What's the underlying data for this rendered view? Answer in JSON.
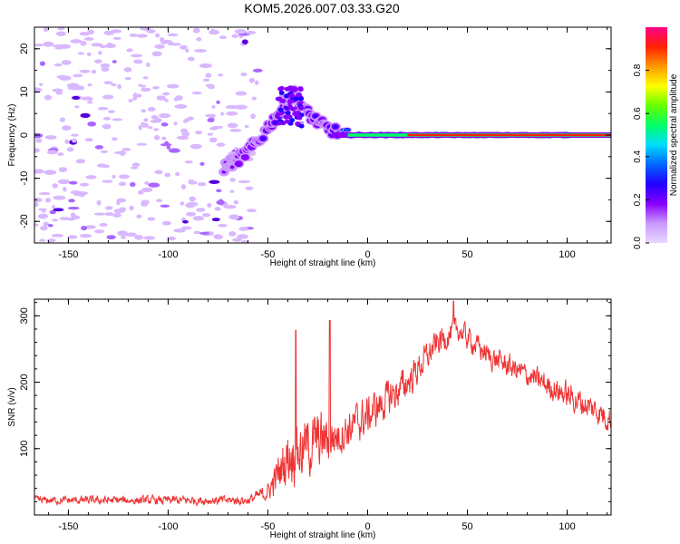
{
  "chart_data": [
    {
      "type": "heatmap",
      "title": "KOM5.2026.007.03.33.G20",
      "xlabel": "Height of straight line (km)",
      "ylabel": "Frequency (Hz)",
      "xlim": [
        -167,
        122
      ],
      "ylim": [
        -25,
        25
      ],
      "xticks": [
        -150,
        -100,
        -50,
        0,
        50,
        100
      ],
      "yticks": [
        -20,
        -10,
        0,
        10,
        20
      ],
      "colorbar": {
        "label": "Normalized spectral amplitude",
        "range": [
          0,
          1
        ],
        "ticks": [
          "0.0",
          "0.2",
          "0.4",
          "0.6",
          "0.8"
        ],
        "colors": [
          "#e6d9ff",
          "#cc99ff",
          "#8800ff",
          "#2200ff",
          "#0066ff",
          "#00ddff",
          "#00ff66",
          "#66ff00",
          "#ffff00",
          "#ff9900",
          "#ff2200",
          "#ff0088"
        ]
      },
      "features": [
        {
          "x": -72,
          "y": -7.5,
          "amp": 0.18
        },
        {
          "x": -63,
          "y": -5,
          "amp": 0.2
        },
        {
          "x": -55,
          "y": -1.5,
          "amp": 0.22
        },
        {
          "x": -48,
          "y": 3,
          "amp": 0.25
        },
        {
          "x": -42,
          "y": 6.5,
          "amp": 0.25
        },
        {
          "x": -37,
          "y": 9.5,
          "amp": 0.2
        },
        {
          "x": -30,
          "y": 5,
          "amp": 0.28
        },
        {
          "x": -22,
          "y": 2,
          "amp": 0.2
        },
        {
          "x": -12,
          "y": 0,
          "amp": 0.4
        },
        {
          "x": 0,
          "y": 0,
          "amp": 0.45
        },
        {
          "x": 20,
          "y": 0,
          "amp": 0.6
        },
        {
          "x": 60,
          "y": 0,
          "amp": 0.95
        },
        {
          "x": 100,
          "y": 0,
          "amp": 0.8
        }
      ],
      "noise": {
        "x_range": [
          -167,
          -55
        ],
        "y_range": [
          -25,
          25
        ],
        "amp": 0.05
      }
    },
    {
      "type": "line",
      "xlabel": "Height of straight line (km)",
      "ylabel": "SNR (v/v)",
      "xlim": [
        -167,
        122
      ],
      "ylim": [
        0,
        325
      ],
      "xticks": [
        -150,
        -100,
        -50,
        0,
        50,
        100
      ],
      "yticks": [
        100,
        200,
        300
      ],
      "color": "#ee3333",
      "envelope": [
        {
          "x": -167,
          "base": 22,
          "spread": 12
        },
        {
          "x": -60,
          "base": 22,
          "spread": 14
        },
        {
          "x": -50,
          "base": 35,
          "spread": 25
        },
        {
          "x": -40,
          "base": 90,
          "spread": 90
        },
        {
          "x": -25,
          "base": 110,
          "spread": 90
        },
        {
          "x": -15,
          "base": 120,
          "spread": 60
        },
        {
          "x": 0,
          "base": 150,
          "spread": 60
        },
        {
          "x": 20,
          "base": 200,
          "spread": 50
        },
        {
          "x": 35,
          "base": 260,
          "spread": 40
        },
        {
          "x": 45,
          "base": 280,
          "spread": 35
        },
        {
          "x": 60,
          "base": 240,
          "spread": 35
        },
        {
          "x": 80,
          "base": 210,
          "spread": 35
        },
        {
          "x": 100,
          "base": 180,
          "spread": 40
        },
        {
          "x": 122,
          "base": 145,
          "spread": 40
        }
      ],
      "spikes": [
        {
          "x": -36,
          "y": 278
        },
        {
          "x": -19,
          "y": 293
        },
        {
          "x": 43,
          "y": 322
        }
      ]
    }
  ]
}
